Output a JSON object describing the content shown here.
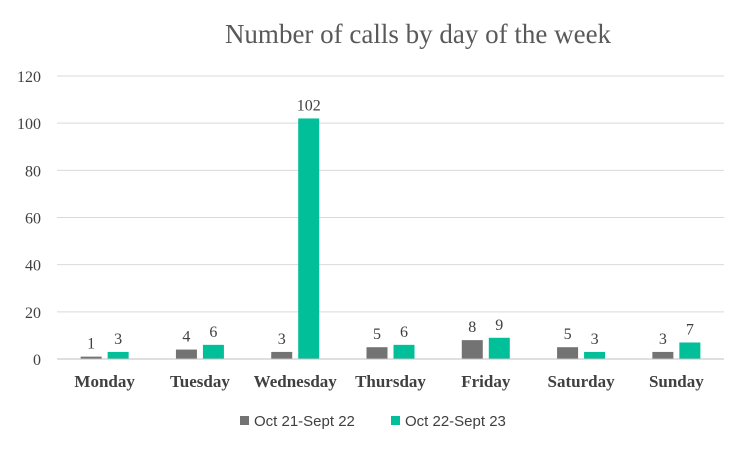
{
  "chart_data": {
    "type": "bar",
    "title": "Number of calls by day of the week",
    "xlabel": "",
    "ylabel": "",
    "categories": [
      "Monday",
      "Tuesday",
      "Wednesday",
      "Thursday",
      "Friday",
      "Saturday",
      "Sunday"
    ],
    "series": [
      {
        "name": "Oct 21-Sept 22",
        "color": "#737373",
        "values": [
          1,
          4,
          3,
          5,
          8,
          5,
          3
        ]
      },
      {
        "name": "Oct 22-Sept 23",
        "color": "#00bf99",
        "values": [
          3,
          6,
          102,
          6,
          9,
          3,
          7
        ]
      }
    ],
    "ylim": [
      0,
      120
    ],
    "yticks": [
      0,
      20,
      40,
      60,
      80,
      100,
      120
    ],
    "grid": true,
    "legend": "bottom",
    "data_labels": true
  }
}
